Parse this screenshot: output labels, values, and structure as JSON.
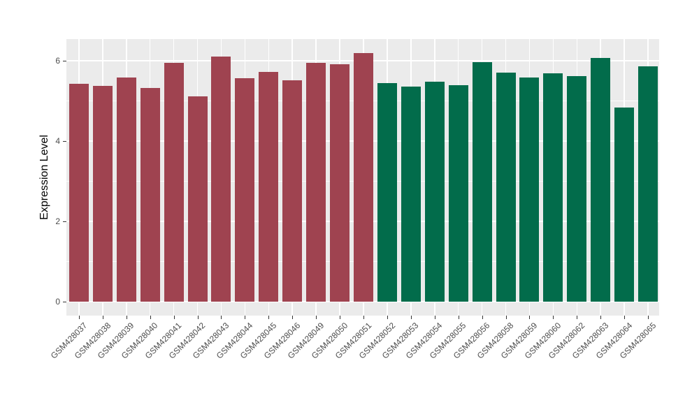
{
  "chart_data": {
    "type": "bar",
    "title": "",
    "ylabel": "Expression Level",
    "xlabel": "",
    "ylim": [
      0,
      6.54
    ],
    "yticks": [
      0,
      2,
      4,
      6
    ],
    "yticks_minor": [
      1,
      3,
      5
    ],
    "grid": "major and minor white gridlines on grey panel",
    "legend": "none",
    "bars": [
      {
        "label": "GSM428037",
        "value": 5.43,
        "group": "group1"
      },
      {
        "label": "GSM428038",
        "value": 5.38,
        "group": "group1"
      },
      {
        "label": "GSM428039",
        "value": 5.58,
        "group": "group1"
      },
      {
        "label": "GSM428040",
        "value": 5.33,
        "group": "group1"
      },
      {
        "label": "GSM428041",
        "value": 5.95,
        "group": "group1"
      },
      {
        "label": "GSM428042",
        "value": 5.12,
        "group": "group1"
      },
      {
        "label": "GSM428043",
        "value": 6.1,
        "group": "group1"
      },
      {
        "label": "GSM428044",
        "value": 5.57,
        "group": "group1"
      },
      {
        "label": "GSM428045",
        "value": 5.73,
        "group": "group1"
      },
      {
        "label": "GSM428046",
        "value": 5.52,
        "group": "group1"
      },
      {
        "label": "GSM428049",
        "value": 5.95,
        "group": "group1"
      },
      {
        "label": "GSM428050",
        "value": 5.92,
        "group": "group1"
      },
      {
        "label": "GSM428051",
        "value": 6.2,
        "group": "group1"
      },
      {
        "label": "GSM428052",
        "value": 5.45,
        "group": "group2"
      },
      {
        "label": "GSM428053",
        "value": 5.36,
        "group": "group2"
      },
      {
        "label": "GSM428054",
        "value": 5.47,
        "group": "group2"
      },
      {
        "label": "GSM428055",
        "value": 5.4,
        "group": "group2"
      },
      {
        "label": "GSM428056",
        "value": 5.96,
        "group": "group2"
      },
      {
        "label": "GSM428058",
        "value": 5.7,
        "group": "group2"
      },
      {
        "label": "GSM428059",
        "value": 5.59,
        "group": "group2"
      },
      {
        "label": "GSM428060",
        "value": 5.68,
        "group": "group2"
      },
      {
        "label": "GSM428062",
        "value": 5.61,
        "group": "group2"
      },
      {
        "label": "GSM428063",
        "value": 6.07,
        "group": "group2"
      },
      {
        "label": "GSM428064",
        "value": 4.84,
        "group": "group2"
      },
      {
        "label": "GSM428065",
        "value": 5.86,
        "group": "group2"
      }
    ],
    "colors": {
      "group1": "#9F4350",
      "group2": "#026C4B",
      "panel_bg": "#EBEBEB",
      "gridline": "#FFFFFF",
      "axis_text": "#4D4D4D",
      "axis_title": "#000000",
      "tick_mark": "#333333",
      "figure_bg": "#FFFFFF"
    }
  }
}
